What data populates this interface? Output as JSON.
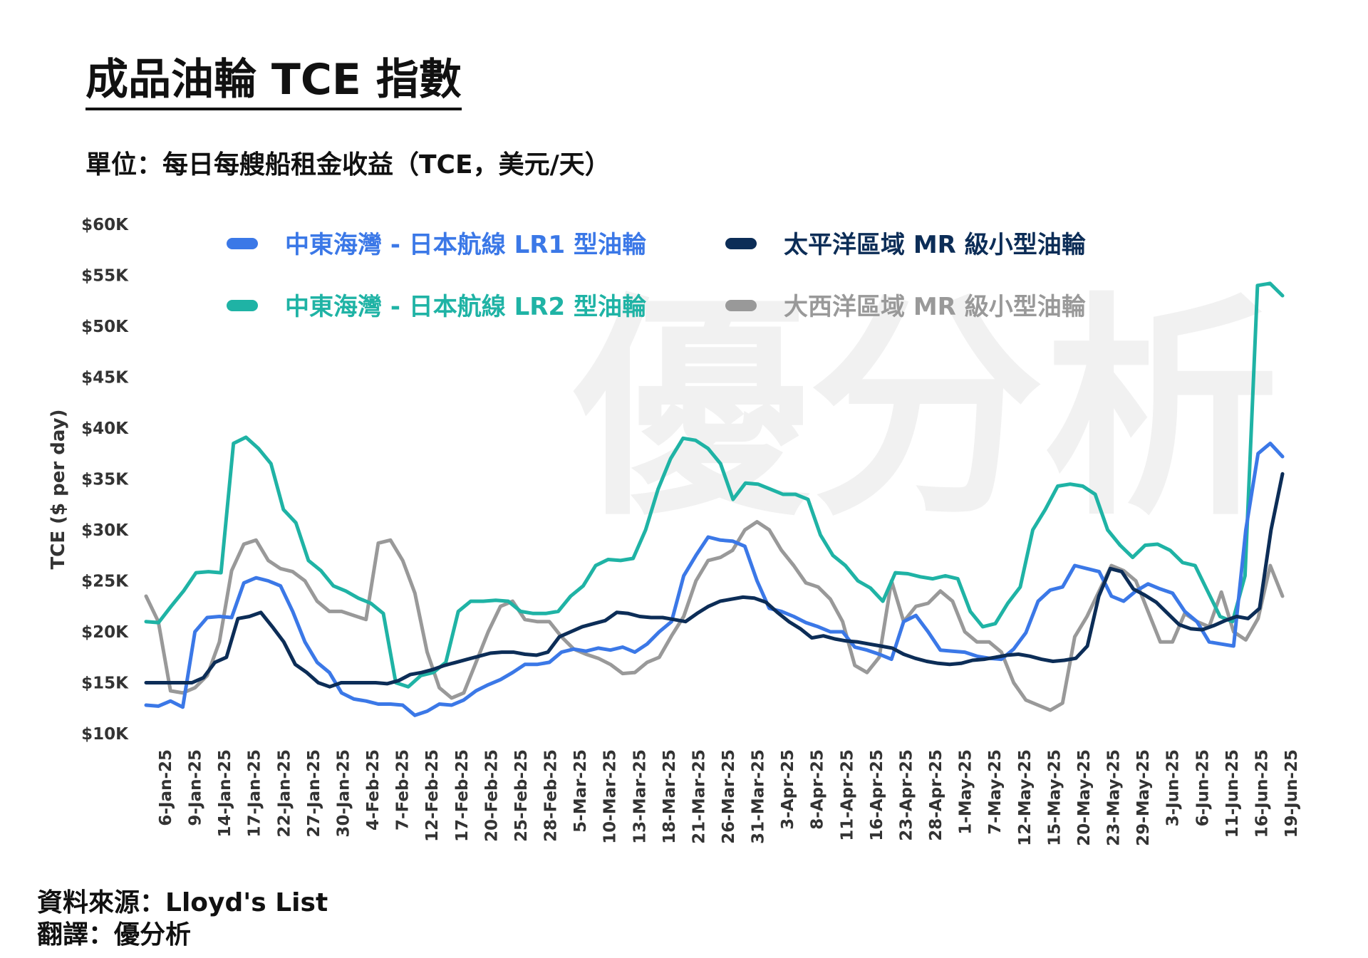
{
  "header": {
    "title": "成品油輪 TCE 指數",
    "subtitle": "單位：每日每艘船租金收益（TCE，美元/天）"
  },
  "footer": {
    "source": "資料來源：Lloyd's List",
    "translator": "翻譯：優分析"
  },
  "watermark": "優分析",
  "chart_data": {
    "type": "line",
    "ylabel": "TCE ($ per day)",
    "ylim": [
      10000,
      60000
    ],
    "y_ticks": [
      {
        "value": 10000,
        "label": "$10K"
      },
      {
        "value": 15000,
        "label": "$15K"
      },
      {
        "value": 20000,
        "label": "$20K"
      },
      {
        "value": 25000,
        "label": "$25K"
      },
      {
        "value": 30000,
        "label": "$30K"
      },
      {
        "value": 35000,
        "label": "$35K"
      },
      {
        "value": 40000,
        "label": "$40K"
      },
      {
        "value": 45000,
        "label": "$45K"
      },
      {
        "value": 50000,
        "label": "$50K"
      },
      {
        "value": 55000,
        "label": "$55K"
      },
      {
        "value": 60000,
        "label": "$60K"
      }
    ],
    "grid": false,
    "legend_position": "top",
    "x_ticks": [
      "6-Jan-25",
      "9-Jan-25",
      "14-Jan-25",
      "17-Jan-25",
      "22-Jan-25",
      "27-Jan-25",
      "30-Jan-25",
      "4-Feb-25",
      "7-Feb-25",
      "12-Feb-25",
      "17-Feb-25",
      "20-Feb-25",
      "25-Feb-25",
      "28-Feb-25",
      "5-Mar-25",
      "10-Mar-25",
      "13-Mar-25",
      "18-Mar-25",
      "21-Mar-25",
      "26-Mar-25",
      "31-Mar-25",
      "3-Apr-25",
      "8-Apr-25",
      "11-Apr-25",
      "16-Apr-25",
      "23-Apr-25",
      "28-Apr-25",
      "1-May-25",
      "7-May-25",
      "12-May-25",
      "15-May-25",
      "20-May-25",
      "23-May-25",
      "29-May-25",
      "3-Jun-25",
      "6-Jun-25",
      "11-Jun-25",
      "16-Jun-25",
      "19-Jun-25"
    ],
    "series": [
      {
        "name": "中東海灣 - 日本航線 LR1 型油輪",
        "color": "#3b78e7",
        "values": [
          12800,
          12700,
          13200,
          12600,
          20000,
          21400,
          21500,
          21400,
          24800,
          25300,
          25000,
          24500,
          22000,
          19000,
          17000,
          16000,
          14000,
          13400,
          13200,
          12900,
          12900,
          12800,
          11800,
          12200,
          12900,
          12800,
          13300,
          14200,
          14800,
          15300,
          16000,
          16800,
          16800,
          17000,
          18000,
          18300,
          18100,
          18400,
          18200,
          18500,
          18000,
          18800,
          20000,
          21000,
          25500,
          27500,
          29300,
          29000,
          28900,
          28400,
          25000,
          22300,
          22000,
          21500,
          20900,
          20500,
          20000,
          20000,
          18500,
          18200,
          17800,
          17300,
          21000,
          21600,
          20000,
          18200,
          18100,
          18000,
          17600,
          17400,
          17300,
          18300,
          19900,
          23000,
          24100,
          24400,
          26500,
          26200,
          25900,
          23500,
          23000,
          24000,
          24700,
          24200,
          23800,
          22000,
          21000,
          19000,
          18800,
          18600,
          30000,
          37500,
          38500,
          37200
        ]
      },
      {
        "name": "中東海灣 - 日本航線 LR2 型油輪",
        "color": "#1fb3a5",
        "values": [
          21000,
          20900,
          22500,
          24000,
          25800,
          25900,
          25800,
          38500,
          39100,
          38000,
          36500,
          32000,
          30700,
          27000,
          26000,
          24500,
          24000,
          23300,
          22800,
          21800,
          15000,
          14600,
          15700,
          16000,
          17000,
          22000,
          23000,
          23000,
          23100,
          23000,
          22000,
          21800,
          21800,
          22000,
          23500,
          24500,
          26500,
          27100,
          27000,
          27200,
          30000,
          34000,
          37000,
          39000,
          38800,
          38000,
          36500,
          33000,
          34600,
          34500,
          34000,
          33500,
          33500,
          33000,
          29500,
          27500,
          26500,
          25000,
          24300,
          23000,
          25800,
          25700,
          25400,
          25200,
          25500,
          25200,
          22000,
          20500,
          20800,
          22800,
          24400,
          30000,
          32000,
          34300,
          34500,
          34300,
          33500,
          30000,
          28500,
          27300,
          28500,
          28600,
          28000,
          26800,
          26500,
          24000,
          21500,
          21000,
          25500,
          54000,
          54200,
          53000
        ]
      },
      {
        "name": "太平洋區域 MR 級小型油輪",
        "color": "#0c2d57",
        "values": [
          15000,
          15000,
          15000,
          15000,
          15000,
          15500,
          17000,
          17500,
          21300,
          21500,
          21900,
          20500,
          19000,
          16800,
          16000,
          15000,
          14600,
          15000,
          15000,
          15000,
          15000,
          14900,
          15200,
          15800,
          16000,
          16300,
          16700,
          17000,
          17300,
          17600,
          17900,
          18000,
          18000,
          17800,
          17700,
          18000,
          19500,
          20000,
          20500,
          20800,
          21100,
          21900,
          21800,
          21500,
          21400,
          21400,
          21200,
          21000,
          21800,
          22500,
          23000,
          23200,
          23400,
          23300,
          22900,
          21900,
          21000,
          20300,
          19400,
          19600,
          19300,
          19100,
          19000,
          18800,
          18600,
          18400,
          17800,
          17400,
          17100,
          16900,
          16800,
          16900,
          17200,
          17300,
          17500,
          17700,
          17800,
          17600,
          17300,
          17100,
          17200,
          17400,
          18600,
          23500,
          26200,
          25900,
          24200,
          23600,
          22900,
          21800,
          20700,
          20300,
          20200,
          20600,
          21100,
          21500,
          21300,
          22300,
          30000,
          35500
        ]
      },
      {
        "name": "大西洋區域 MR 級小型油輪",
        "color": "#999999",
        "values": [
          23500,
          21000,
          14200,
          14000,
          14500,
          15700,
          19000,
          26000,
          28600,
          29000,
          27000,
          26200,
          25900,
          25000,
          23000,
          22000,
          22000,
          21600,
          21200,
          28700,
          29000,
          27000,
          23800,
          18000,
          14500,
          13500,
          14000,
          17000,
          20000,
          22500,
          23000,
          21200,
          21000,
          21000,
          19500,
          18300,
          17800,
          17400,
          16800,
          15900,
          16000,
          17000,
          17500,
          19600,
          21500,
          25000,
          27000,
          27300,
          28000,
          30000,
          30800,
          30000,
          28000,
          26500,
          24800,
          24400,
          23200,
          21000,
          16700,
          16000,
          17500,
          25000,
          21000,
          22500,
          22800,
          24000,
          23000,
          20000,
          19000,
          19000,
          18000,
          15000,
          13300,
          12800,
          12300,
          13000,
          19500,
          21500,
          24000,
          26500,
          26000,
          25000,
          22000,
          19000,
          19000,
          21800,
          21000,
          20500,
          23900,
          20000,
          19200,
          21300,
          26500,
          23500
        ]
      }
    ]
  }
}
